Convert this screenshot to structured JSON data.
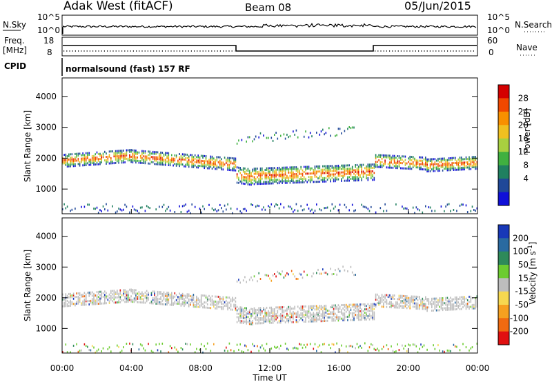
{
  "header": {
    "station": "Adak West (fitACF)",
    "beam": "Beam 08",
    "date": "05/Jun/2015"
  },
  "panels": {
    "nsky_label": "N.Sky",
    "nsearch_label": "N.Search",
    "nsky_ticks": [
      "10^5",
      "10^0"
    ],
    "nsearch_ticks": [
      "10^5",
      "10^0"
    ],
    "freq_label_1": "Freq.",
    "freq_label_2": "[MHz]",
    "freq_ticks": [
      "18",
      "8"
    ],
    "nave_label": "Nave",
    "nave_ticks": [
      "60",
      "0"
    ],
    "cpid_label": "CPID",
    "cpid_text": "normalsound (fast) 157 RF"
  },
  "chart_data": [
    {
      "type": "heatmap",
      "name": "power",
      "ylabel": "Slant Range [km]",
      "ylim": [
        200,
        4600
      ],
      "yticks": [
        "4000",
        "3000",
        "2000",
        "1000"
      ],
      "colorbar_label": "Power [dB]",
      "colorbar_ticks": [
        "28",
        "24",
        "20",
        "16",
        "12",
        "8",
        "4"
      ],
      "colorbar_colors": [
        "#d40000",
        "#f04800",
        "#f89000",
        "#f0c020",
        "#a8d040",
        "#40b040",
        "#208060",
        "#204898",
        "#1010d8"
      ],
      "features": [
        {
          "label": "main band",
          "range_km": [
            1700,
            2200
          ],
          "time_h": [
            0,
            24
          ]
        },
        {
          "label": "upper band",
          "range_km": [
            2400,
            2900
          ],
          "time_h": [
            10,
            17
          ]
        }
      ]
    },
    {
      "type": "heatmap",
      "name": "velocity",
      "ylabel": "Slant Range [km]",
      "ylim": [
        200,
        4600
      ],
      "yticks": [
        "4000",
        "3000",
        "2000",
        "1000"
      ],
      "colorbar_label": "Velocity [m s-1]",
      "colorbar_ticks": [
        "200",
        "100",
        "50",
        "15",
        "-15",
        "-50",
        "-100",
        "-200"
      ],
      "colorbar_colors": [
        "#1838b8",
        "#2a6aa0",
        "#2e8a5a",
        "#6ccc30",
        "#bdbdbd",
        "#f6d850",
        "#f6a020",
        "#f06a10",
        "#e01010"
      ]
    }
  ],
  "xaxis": {
    "label": "Time UT",
    "ticks": [
      "00:00",
      "04:00",
      "08:00",
      "12:00",
      "16:00",
      "20:00",
      "00:00"
    ]
  }
}
